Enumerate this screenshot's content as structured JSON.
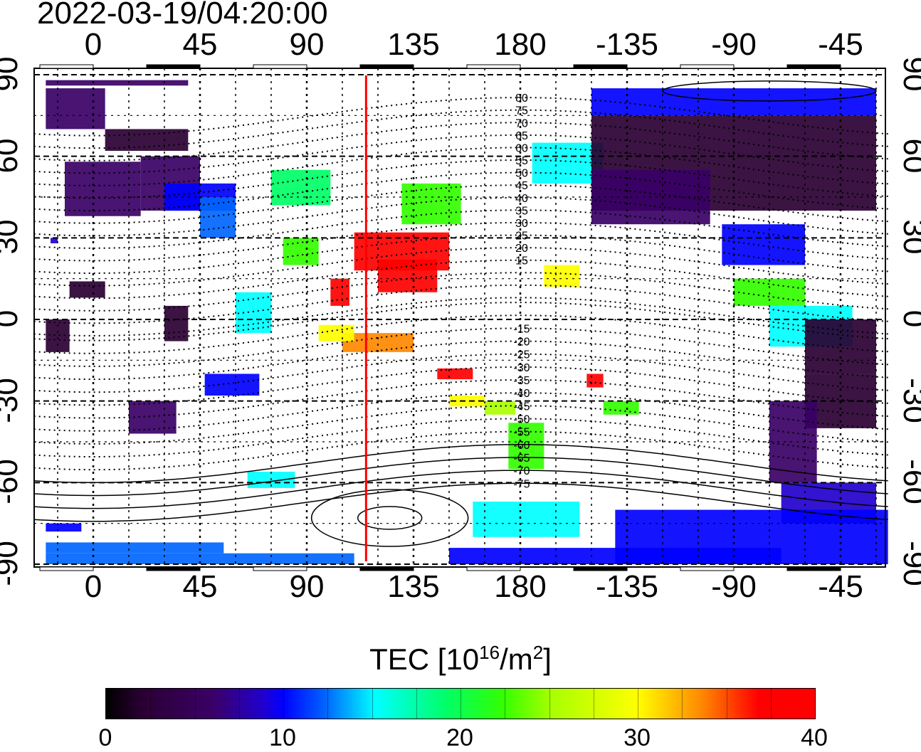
{
  "title": "2022-03-19/04:20:00",
  "lon_ticks": [
    "0",
    "45",
    "90",
    "135",
    "180",
    "-135",
    "-90",
    "-45"
  ],
  "lat_ticks": [
    "90",
    "60",
    "30",
    "0",
    "-30",
    "-60",
    "-90"
  ],
  "maglat_labels_north": [
    "80",
    "75",
    "70",
    "65",
    "60",
    "55",
    "50",
    "45",
    "40",
    "35",
    "30",
    "25",
    "20",
    "15"
  ],
  "maglat_labels_south": [
    "-15",
    "-20",
    "-25",
    "-30",
    "-35",
    "-40",
    "-45",
    "-50",
    "-55",
    "-60",
    "-65",
    "-70",
    "-75"
  ],
  "colorbar": {
    "label_main": "TEC  [10",
    "label_sup1": "16",
    "label_mid": "/m",
    "label_sup2": "2",
    "label_end": "]",
    "ticks": [
      "0",
      "10",
      "20",
      "30",
      "40"
    ],
    "min": 0,
    "max": 40
  },
  "marker_line": {
    "longitude": 115,
    "color": "#ff0000"
  }
}
